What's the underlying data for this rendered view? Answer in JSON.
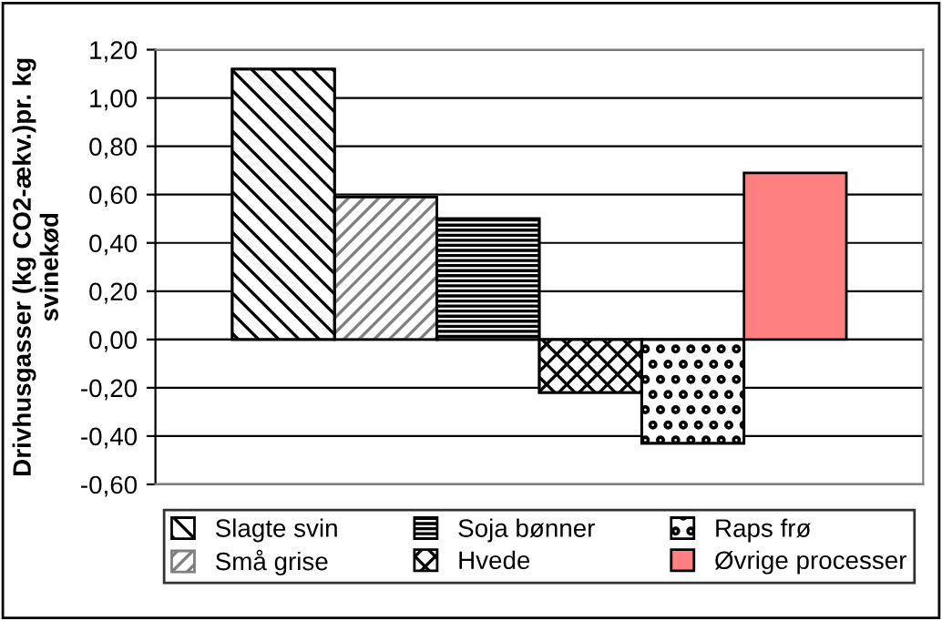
{
  "chart_data": {
    "type": "bar",
    "ylabel": "Drivhusgasser (kg CO2-ækv.)pr. kg svinekød",
    "categories": [
      null
    ],
    "series": [
      {
        "name": "Slagte svin",
        "color": "#000000",
        "values": [
          1.12
        ]
      },
      {
        "name": "Små grise",
        "color": "#808080",
        "values": [
          0.59
        ]
      },
      {
        "name": "Soja bønner",
        "color": "#000000",
        "values": [
          0.5
        ]
      },
      {
        "name": "Hvede",
        "color": "#000000",
        "values": [
          -0.22
        ]
      },
      {
        "name": "Raps frø",
        "color": "#000000",
        "values": [
          -0.43
        ]
      },
      {
        "name": "Øvrige processer",
        "color": "#ff8080",
        "values": [
          0.69
        ]
      }
    ],
    "ylim": [
      -0.6,
      1.2
    ],
    "yticks": [
      {
        "value": -0.6,
        "label": "-0,60"
      },
      {
        "value": -0.4,
        "label": "-0,40"
      },
      {
        "value": -0.2,
        "label": "-0,20"
      },
      {
        "value": 0,
        "label": "0,00"
      },
      {
        "value": 0.2,
        "label": "0,20"
      },
      {
        "value": 0.4,
        "label": "0,40"
      },
      {
        "value": 0.6,
        "label": "0,60"
      },
      {
        "value": 0.8,
        "label": "0,80"
      },
      {
        "value": 1.0,
        "label": "1,00"
      },
      {
        "value": 1.2,
        "label": "1,20"
      }
    ],
    "grid": "y",
    "legend": "bottom"
  }
}
